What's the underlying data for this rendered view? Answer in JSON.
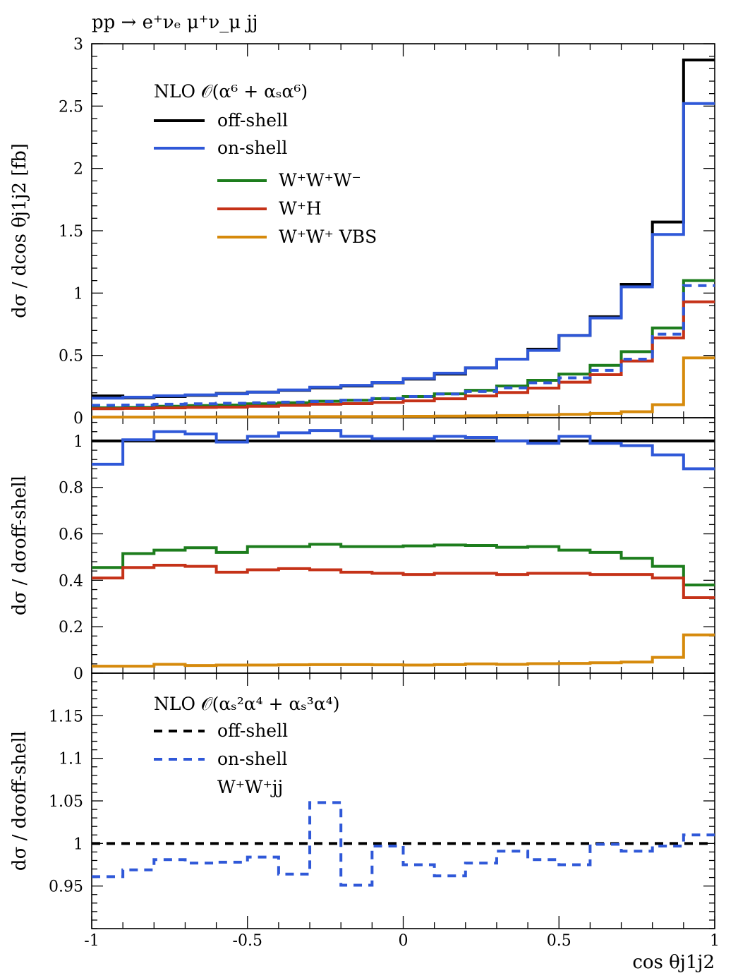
{
  "colors": {
    "offshell": "#000000",
    "onshell": "#2f58d8",
    "www": "#1d7d1d",
    "wh": "#c53218",
    "vbs": "#d68a0c"
  },
  "chart_data": [
    {
      "type": "line",
      "panel": "top",
      "title": "pp → e⁺νₑ μ⁺ν_μ jj",
      "xlabel": "",
      "ylabel": "dσ / dcos θj1j2 [fb]",
      "xlim": [
        -1,
        1
      ],
      "ylim": [
        0,
        3
      ],
      "yticks": [
        0,
        0.5,
        1,
        1.5,
        2,
        2.5,
        3
      ],
      "ytick_labels": [
        "0",
        "0.5",
        "1",
        "1.5",
        "2",
        "2.5",
        "3"
      ],
      "legend_header": "NLO 𝒪(α⁶ + αₛα⁶)",
      "legend_position": "top-left",
      "x_edges": [
        -1.0,
        -0.9,
        -0.8,
        -0.7,
        -0.6,
        -0.5,
        -0.4,
        -0.3,
        -0.2,
        -0.1,
        0.0,
        0.1,
        0.2,
        0.3,
        0.4,
        0.5,
        0.6,
        0.7,
        0.8,
        0.9,
        1.0
      ],
      "series": [
        {
          "name": "off-shell",
          "color_key": "offshell",
          "dash": false,
          "values": [
            0.175,
            0.16,
            0.17,
            0.18,
            0.195,
            0.205,
            0.22,
            0.24,
            0.255,
            0.28,
            0.31,
            0.35,
            0.4,
            0.47,
            0.55,
            0.66,
            0.81,
            1.07,
            1.57,
            2.87
          ]
        },
        {
          "name": "on-shell",
          "color_key": "onshell",
          "dash": false,
          "values": [
            0.157,
            0.165,
            0.176,
            0.183,
            0.192,
            0.205,
            0.223,
            0.245,
            0.26,
            0.283,
            0.315,
            0.357,
            0.4,
            0.47,
            0.54,
            0.66,
            0.8,
            1.05,
            1.47,
            2.52
          ]
        },
        {
          "name": "W⁺W⁺W⁻",
          "color_key": "www",
          "dash": false,
          "values": [
            0.08,
            0.083,
            0.092,
            0.098,
            0.102,
            0.112,
            0.12,
            0.132,
            0.14,
            0.153,
            0.17,
            0.192,
            0.22,
            0.255,
            0.3,
            0.35,
            0.42,
            0.53,
            0.72,
            1.1
          ]
        },
        {
          "name": "W⁺H",
          "color_key": "wh",
          "dash": false,
          "values": [
            0.072,
            0.074,
            0.079,
            0.083,
            0.085,
            0.092,
            0.099,
            0.108,
            0.113,
            0.123,
            0.135,
            0.152,
            0.175,
            0.202,
            0.238,
            0.285,
            0.345,
            0.455,
            0.64,
            0.93
          ]
        },
        {
          "name": "W⁺W⁺ VBS",
          "color_key": "vbs",
          "dash": false,
          "values": [
            0.005,
            0.005,
            0.006,
            0.006,
            0.007,
            0.007,
            0.008,
            0.009,
            0.009,
            0.01,
            0.011,
            0.013,
            0.015,
            0.018,
            0.022,
            0.027,
            0.035,
            0.048,
            0.105,
            0.48
          ]
        },
        {
          "name": "",
          "color_key": "onshell",
          "dash": true,
          "values": [
            0.1,
            0.102,
            0.108,
            0.112,
            0.116,
            0.12,
            0.125,
            0.13,
            0.14,
            0.155,
            0.17,
            0.19,
            0.21,
            0.24,
            0.28,
            0.32,
            0.38,
            0.47,
            0.67,
            1.06
          ]
        }
      ]
    },
    {
      "type": "line",
      "panel": "middle",
      "xlabel": "",
      "ylabel": "dσ / dσoff-shell",
      "xlim": [
        -1,
        1
      ],
      "ylim": [
        0,
        1.1
      ],
      "yticks": [
        0,
        0.2,
        0.4,
        0.6,
        0.8,
        1
      ],
      "ytick_labels": [
        "0",
        "0.2",
        "0.4",
        "0.6",
        "0.8",
        "1"
      ],
      "x_edges": [
        -1.0,
        -0.9,
        -0.8,
        -0.7,
        -0.6,
        -0.5,
        -0.4,
        -0.3,
        -0.2,
        -0.1,
        0.0,
        0.1,
        0.2,
        0.3,
        0.4,
        0.5,
        0.6,
        0.7,
        0.8,
        0.9,
        1.0
      ],
      "series": [
        {
          "name": "off-shell",
          "color_key": "offshell",
          "dash": false,
          "values": [
            1,
            1,
            1,
            1,
            1,
            1,
            1,
            1,
            1,
            1,
            1,
            1,
            1,
            1,
            1,
            1,
            1,
            1,
            1,
            1
          ]
        },
        {
          "name": "on-shell",
          "color_key": "onshell",
          "dash": false,
          "values": [
            0.9,
            1.005,
            1.04,
            1.03,
            0.995,
            1.02,
            1.035,
            1.045,
            1.02,
            1.01,
            1.01,
            1.02,
            1.015,
            1.0,
            0.99,
            1.02,
            0.99,
            0.98,
            0.94,
            0.88
          ]
        },
        {
          "name": "W⁺W⁺W⁻",
          "color_key": "www",
          "dash": false,
          "values": [
            0.455,
            0.515,
            0.53,
            0.54,
            0.52,
            0.545,
            0.545,
            0.555,
            0.545,
            0.545,
            0.548,
            0.552,
            0.55,
            0.542,
            0.545,
            0.53,
            0.52,
            0.495,
            0.46,
            0.38
          ]
        },
        {
          "name": "W⁺H",
          "color_key": "wh",
          "dash": false,
          "values": [
            0.41,
            0.455,
            0.465,
            0.46,
            0.435,
            0.445,
            0.45,
            0.445,
            0.435,
            0.43,
            0.425,
            0.43,
            0.43,
            0.425,
            0.43,
            0.43,
            0.425,
            0.425,
            0.41,
            0.325
          ]
        },
        {
          "name": "W⁺W⁺ VBS",
          "color_key": "vbs",
          "dash": false,
          "values": [
            0.03,
            0.03,
            0.038,
            0.033,
            0.035,
            0.035,
            0.036,
            0.037,
            0.037,
            0.036,
            0.035,
            0.037,
            0.04,
            0.038,
            0.041,
            0.042,
            0.045,
            0.048,
            0.068,
            0.165
          ]
        }
      ]
    },
    {
      "type": "line",
      "panel": "bottom",
      "xlabel": "cos θj1j2",
      "ylabel": "dσ / dσoff-shell",
      "xlim": [
        -1,
        1
      ],
      "ylim": [
        0.9,
        1.2
      ],
      "yticks": [
        0.95,
        1,
        1.05,
        1.1,
        1.15
      ],
      "ytick_labels": [
        "0.95",
        "1",
        "1.05",
        "1.1",
        "1.15"
      ],
      "xticks": [
        -1,
        -0.5,
        0,
        0.5,
        1
      ],
      "xtick_labels": [
        "-1",
        "-0.5",
        "0",
        "0.5",
        "1"
      ],
      "legend_header": "NLO 𝒪(αₛ²α⁴ + αₛ³α⁴)",
      "legend_position": "top-left",
      "x_edges": [
        -1.0,
        -0.9,
        -0.8,
        -0.7,
        -0.6,
        -0.5,
        -0.4,
        -0.3,
        -0.2,
        -0.1,
        0.0,
        0.1,
        0.2,
        0.3,
        0.4,
        0.5,
        0.6,
        0.7,
        0.8,
        0.9,
        1.0
      ],
      "series": [
        {
          "name": "off-shell",
          "color_key": "offshell",
          "dash": true,
          "values": [
            1,
            1,
            1,
            1,
            1,
            1,
            1,
            1,
            1,
            1,
            1,
            1,
            1,
            1,
            1,
            1,
            1,
            1,
            1,
            1
          ]
        },
        {
          "name": "on-shell",
          "color_key": "onshell",
          "dash": true,
          "values": [
            0.961,
            0.969,
            0.981,
            0.977,
            0.978,
            0.984,
            0.964,
            1.048,
            0.951,
            0.997,
            0.975,
            0.962,
            0.977,
            0.991,
            0.981,
            0.975,
            0.999,
            0.991,
            0.997,
            1.01
          ]
        }
      ],
      "extra_label": "W⁺W⁺jj"
    }
  ],
  "labels": {
    "title": "pp → e⁺νₑ μ⁺ν_μ jj",
    "top_legend_header": "NLO 𝒪(α⁶ + αₛα⁶)",
    "leg_offshell": "off-shell",
    "leg_onshell": "on-shell",
    "leg_www": "W⁺W⁺W⁻",
    "leg_wh": "W⁺H",
    "leg_vbs": "W⁺W⁺ VBS",
    "bottom_legend_header": "NLO 𝒪(αₛ²α⁴ + αₛ³α⁴)",
    "leg2_offshell": "off-shell",
    "leg2_onshell": "on-shell",
    "leg2_process": "W⁺W⁺jj",
    "ylabel_top": "dσ / dcos θj1j2 [fb]",
    "ylabel_ratio": "dσ / dσoff-shell",
    "ylabel_ratio2": "dσ / dσoff-shell",
    "xlabel": "cos θj1j2"
  }
}
